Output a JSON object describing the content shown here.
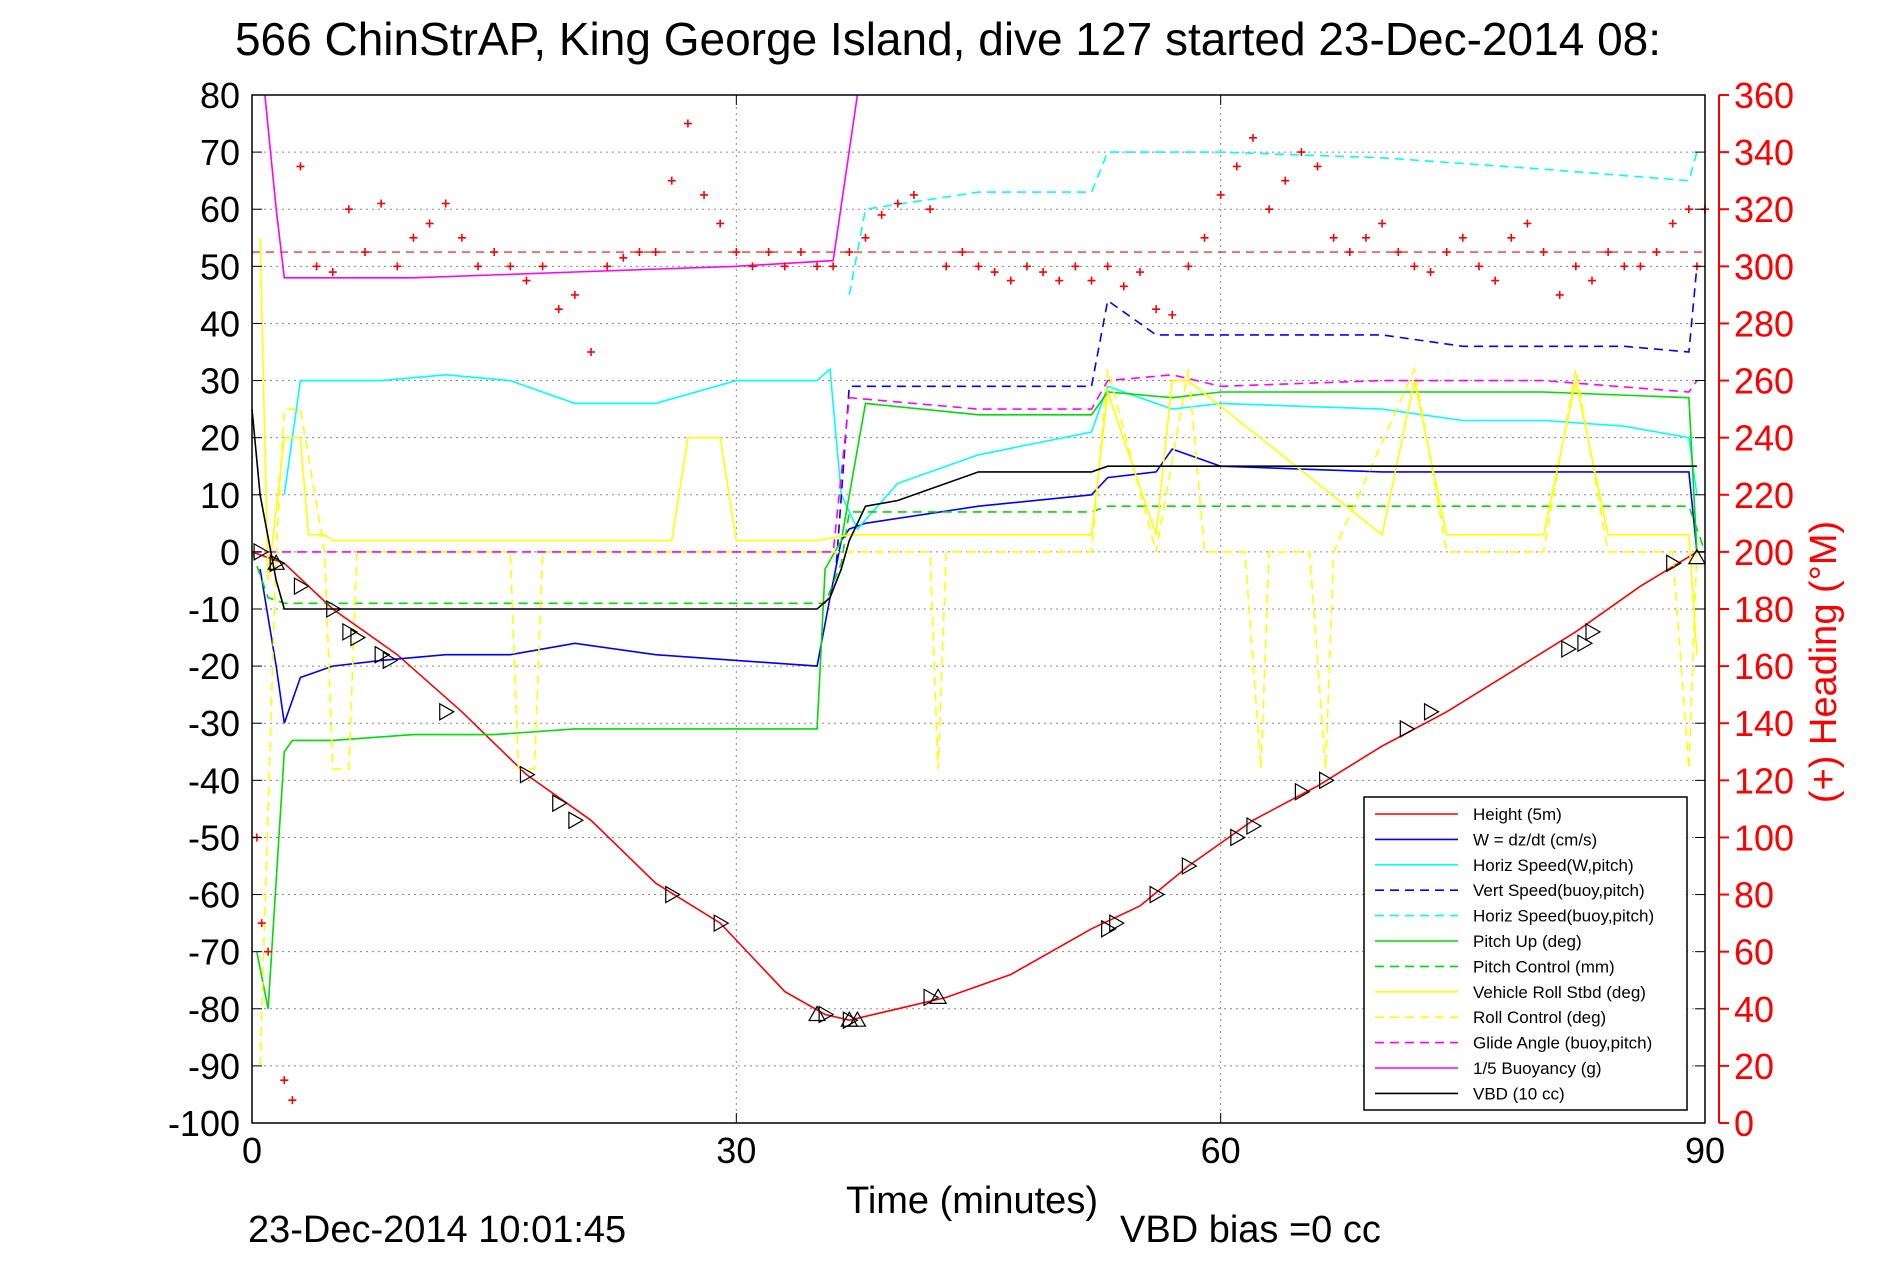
{
  "chart_data": {
    "type": "line",
    "title": "566 ChinStrAP, King George Island, dive 127 started 23-Dec-2014 08:",
    "xlabel": "Time (minutes)",
    "ylabel": "",
    "y2label": "(+) Heading (°M)",
    "xlim": [
      0,
      90
    ],
    "ylim": [
      -100,
      80
    ],
    "y2lim": [
      0,
      360
    ],
    "xticks": [
      "0",
      "30",
      "60",
      "90"
    ],
    "yticks": [
      "80",
      "70",
      "60",
      "50",
      "40",
      "30",
      "20",
      "10",
      "0",
      "-10",
      "-20",
      "-30",
      "-40",
      "-50",
      "-60",
      "-70",
      "-80",
      "-90",
      "-100"
    ],
    "y2ticks": [
      "360",
      "340",
      "320",
      "300",
      "280",
      "260",
      "240",
      "220",
      "200",
      "180",
      "160",
      "140",
      "120",
      "100",
      "80",
      "60",
      "40",
      "20",
      "0"
    ],
    "grid": true,
    "legend_position": "bottom-right",
    "footer_left": "23-Dec-2014 10:01:45",
    "footer_right": "VBD bias =0 cc",
    "reference_line_heading": 305,
    "series": [
      {
        "name": "Height (5m)",
        "color": "#ff0000",
        "style": "solid",
        "x": [
          0,
          2,
          5,
          9,
          13,
          17,
          21,
          25,
          29,
          33,
          35.5,
          37,
          40,
          43,
          47,
          52,
          55,
          58,
          62,
          66,
          70,
          74,
          78,
          82,
          86,
          89.5
        ],
        "y": [
          0,
          -2,
          -10,
          -18,
          -28,
          -39,
          -47,
          -58,
          -65,
          -77,
          -81,
          -82,
          -80,
          -78,
          -74,
          -66,
          -62,
          -55,
          -47,
          -41,
          -34,
          -28,
          -21,
          -14,
          -6,
          0
        ]
      },
      {
        "name": "W = dz/dt (cm/s)",
        "color": "#0000ff",
        "style": "solid",
        "x": [
          0.5,
          1.5,
          2,
          3,
          5,
          8,
          12,
          16,
          20,
          25,
          30,
          35,
          35.8,
          36.5,
          37,
          38,
          45,
          52,
          53,
          56,
          57,
          60,
          70,
          75,
          80,
          85,
          89,
          89.5,
          90
        ],
        "y": [
          -3,
          -20,
          -30,
          -22,
          -20,
          -19,
          -18,
          -18,
          -16,
          -18,
          -19,
          -20,
          -8,
          2,
          4,
          5,
          8,
          10,
          13,
          14,
          18,
          15,
          14,
          14,
          14,
          14,
          14,
          0,
          0
        ]
      },
      {
        "name": "Horiz Speed(W,pitch)",
        "color": "#00ffff",
        "style": "solid",
        "x": [
          2,
          3,
          5,
          8,
          12,
          16,
          20,
          25,
          30,
          35,
          35.8,
          36.5,
          37.5,
          40,
          45,
          52,
          53,
          57,
          60,
          70,
          75,
          80,
          85,
          89,
          89.5
        ],
        "y": [
          10,
          30,
          30,
          30,
          31,
          30,
          26,
          26,
          30,
          30,
          32,
          10,
          4,
          12,
          17,
          21,
          29,
          25,
          26,
          25,
          23,
          23,
          22,
          20,
          10
        ]
      },
      {
        "name": "Vert Speed(buoy,pitch)",
        "color": "#0000ff",
        "style": "dashed",
        "x": [
          36.2,
          37,
          45,
          52,
          53,
          56,
          60,
          70,
          75,
          80,
          85,
          89,
          89.5
        ],
        "y": [
          -2,
          29,
          29,
          29,
          44,
          38,
          38,
          38,
          36,
          36,
          36,
          35,
          50
        ]
      },
      {
        "name": "Horiz Speed(buoy,pitch)",
        "color": "#00ffff",
        "style": "dashed",
        "x": [
          37,
          38,
          45,
          52,
          53,
          60,
          70,
          80,
          89,
          89.5
        ],
        "y": [
          45,
          60,
          63,
          63,
          70,
          70,
          69,
          67,
          65,
          70
        ]
      },
      {
        "name": "Pitch Up (deg)",
        "color": "#00dd00",
        "style": "solid",
        "x": [
          0.3,
          1,
          2,
          2.5,
          5,
          10,
          15,
          20,
          25,
          30,
          35,
          35.5,
          36.5,
          38,
          45,
          52,
          53,
          57,
          60,
          70,
          80,
          89,
          89.5
        ],
        "y": [
          -70,
          -80,
          -35,
          -33,
          -33,
          -32,
          -32,
          -31,
          -31,
          -31,
          -31,
          -3,
          2,
          26,
          24,
          24,
          28,
          27,
          28,
          28,
          28,
          27,
          0
        ]
      },
      {
        "name": "Pitch Control (mm)",
        "color": "#00dd00",
        "style": "dashed",
        "x": [
          0,
          1,
          2,
          10,
          20,
          30,
          35.5,
          36.5,
          37,
          52,
          53,
          70,
          89,
          90
        ],
        "y": [
          0,
          -8,
          -9,
          -9,
          -9,
          -9,
          -9,
          -2,
          7,
          7,
          8,
          8,
          8,
          0
        ]
      },
      {
        "name": "Vehicle Roll Stbd (deg)",
        "color": "#ffff00",
        "style": "solid",
        "x": [
          0.5,
          1,
          2,
          3,
          3.5,
          4.5,
          5,
          10,
          20,
          26,
          27,
          29,
          30,
          35,
          37,
          40,
          52,
          53,
          56,
          57,
          58,
          70,
          72,
          74,
          80,
          82,
          84,
          89,
          89.5
        ],
        "y": [
          55,
          -5,
          20,
          20,
          3,
          3,
          2,
          2,
          2,
          2,
          20,
          20,
          2,
          2,
          3,
          3,
          3,
          28,
          3,
          30,
          30,
          3,
          30,
          3,
          3,
          30,
          3,
          3,
          -18
        ]
      },
      {
        "name": "Roll Control (deg)",
        "color": "#ffff00",
        "style": "dashed",
        "x": [
          0.5,
          1.5,
          2,
          3,
          4.5,
          5,
          6,
          6.5,
          10,
          16,
          16.5,
          17.5,
          18,
          25,
          30,
          37,
          42,
          42.5,
          43,
          52,
          53,
          56,
          58,
          59,
          61.5,
          62.5,
          63,
          65.5,
          66.5,
          67,
          72,
          74,
          80,
          82,
          84,
          88,
          89,
          89.5
        ],
        "y": [
          -90,
          0,
          25,
          25,
          0,
          -38,
          -38,
          0,
          0,
          0,
          -38,
          -38,
          0,
          0,
          0,
          0,
          0,
          -38,
          0,
          0,
          32,
          0,
          32,
          0,
          0,
          -38,
          0,
          0,
          -38,
          0,
          32,
          0,
          0,
          32,
          0,
          0,
          -38,
          0
        ]
      },
      {
        "name": "Glide Angle (buoy,pitch)",
        "color": "#ff00ff",
        "style": "dashed",
        "x": [
          0,
          10,
          20,
          30,
          36,
          37,
          45,
          52,
          53,
          57,
          60,
          70,
          80,
          89,
          89.5
        ],
        "y": [
          0,
          0,
          0,
          0,
          0,
          27,
          25,
          25,
          30,
          31,
          29,
          30,
          30,
          28,
          30
        ]
      },
      {
        "name": "1/5 Buoyancy (g)",
        "color": "#ff00ff",
        "style": "solid",
        "x": [
          0.8,
          1.5,
          2,
          10,
          20,
          30,
          36,
          37.5
        ],
        "y": [
          80,
          60,
          48,
          48,
          49,
          50,
          51,
          80
        ]
      },
      {
        "name": "VBD (10 cc)",
        "color": "#000000",
        "style": "solid",
        "x": [
          0,
          0.5,
          1.5,
          2,
          10,
          20,
          30,
          35,
          35.8,
          36.5,
          37,
          38,
          40,
          45,
          52,
          53,
          60,
          70,
          80,
          89,
          89.5
        ],
        "y": [
          25,
          10,
          -5,
          -10,
          -10,
          -10,
          -10,
          -10,
          -8,
          -3,
          2,
          8,
          9,
          14,
          14,
          15,
          15,
          15,
          15,
          15,
          15
        ]
      }
    ],
    "heading_series": {
      "name": "(+) Heading",
      "color": "#ff0000",
      "x": [
        0.3,
        0.6,
        1,
        2,
        2.5,
        3,
        4,
        5,
        6,
        7,
        8,
        9,
        10,
        11,
        12,
        13,
        14,
        15,
        16,
        17,
        18,
        19,
        20,
        21,
        22,
        23,
        24,
        25,
        26,
        27,
        28,
        29,
        30,
        31,
        32,
        33,
        34,
        35,
        36,
        37,
        38,
        39,
        40,
        41,
        42,
        43,
        44,
        45,
        46,
        47,
        48,
        49,
        50,
        51,
        52,
        53,
        54,
        55,
        56,
        57,
        58,
        59,
        60,
        61,
        62,
        63,
        64,
        65,
        66,
        67,
        68,
        69,
        70,
        71,
        72,
        73,
        74,
        75,
        76,
        77,
        78,
        79,
        80,
        81,
        82,
        83,
        84,
        85,
        86,
        87,
        88,
        89,
        89.5,
        90
      ],
      "y": [
        100,
        70,
        60,
        15,
        8,
        335,
        300,
        298,
        320,
        305,
        322,
        300,
        310,
        315,
        322,
        310,
        300,
        305,
        300,
        295,
        300,
        285,
        290,
        270,
        300,
        303,
        305,
        305,
        330,
        350,
        325,
        315,
        305,
        300,
        305,
        300,
        305,
        300,
        300,
        305,
        310,
        318,
        322,
        325,
        320,
        300,
        305,
        300,
        298,
        295,
        300,
        298,
        295,
        300,
        295,
        300,
        293,
        298,
        285,
        283,
        300,
        310,
        325,
        335,
        345,
        320,
        330,
        340,
        335,
        310,
        305,
        310,
        315,
        305,
        300,
        298,
        305,
        310,
        300,
        295,
        310,
        315,
        305,
        290,
        300,
        295,
        305,
        300,
        300,
        305,
        315,
        320,
        300,
        320
      ]
    },
    "markers_triangle_right": {
      "x": [
        0.5,
        1.5,
        3,
        5,
        6,
        6.5,
        8,
        8.5,
        12,
        17,
        19,
        20,
        26,
        29,
        35.5,
        37,
        42,
        53,
        53.5,
        56,
        58,
        61,
        62,
        65,
        66.5,
        71.5,
        73,
        81.5,
        82.5,
        83,
        88
      ],
      "y": [
        0,
        -2,
        -6,
        -10,
        -14,
        -15,
        -18,
        -19,
        -28,
        -39,
        -44,
        -47,
        -60,
        -65,
        -81,
        -82,
        -78,
        -66,
        -65,
        -60,
        -55,
        -50,
        -48,
        -42,
        -40,
        -31,
        -28,
        -17,
        -16,
        -14,
        -2
      ]
    },
    "markers_triangle_up": {
      "x": [
        1.5,
        35,
        37,
        37.5,
        42.5,
        89.5
      ],
      "y": [
        -2,
        -81,
        -82,
        -82,
        -78,
        -1
      ]
    }
  }
}
